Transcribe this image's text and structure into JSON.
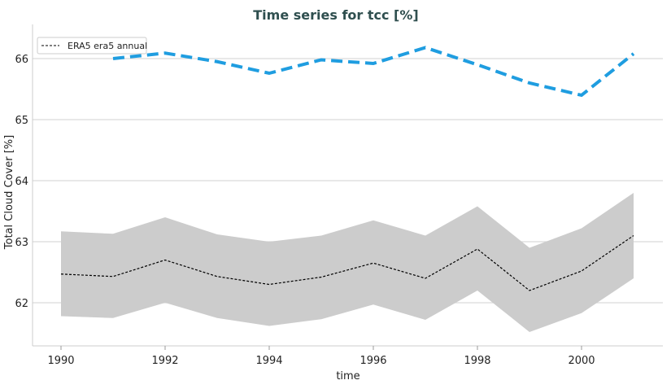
{
  "chart_data": {
    "type": "line",
    "title": "Time series for tcc [%]",
    "xlabel": "time",
    "ylabel": "Total Cloud Cover [%]",
    "xlim": [
      1989.5,
      2002.6
    ],
    "ylim": [
      61.3,
      66.6
    ],
    "xticks": [
      1990,
      1992,
      1994,
      1996,
      1998,
      2000
    ],
    "yticks": [
      62,
      63,
      64,
      65,
      66
    ],
    "grid": "horizontal",
    "legend_placement": "top-left",
    "series": [
      {
        "name": "ERA5 era5 annual",
        "style": "dashed",
        "color": "#000000",
        "x": [
          1990,
          1991,
          1992,
          1993,
          1994,
          1995,
          1996,
          1997,
          1998,
          1999,
          2000,
          2001
        ],
        "values": [
          62.47,
          62.43,
          62.7,
          62.43,
          62.3,
          62.42,
          62.65,
          62.4,
          62.88,
          62.2,
          62.52,
          63.1
        ],
        "band_upper": [
          63.17,
          63.13,
          63.4,
          63.12,
          63.0,
          63.1,
          63.35,
          63.1,
          63.58,
          62.9,
          63.22,
          63.8
        ],
        "band_lower": [
          61.78,
          61.75,
          62.0,
          61.75,
          61.62,
          61.73,
          61.97,
          61.72,
          62.2,
          61.52,
          61.83,
          62.4
        ],
        "band_color": "#cccccc"
      },
      {
        "style": "dashed",
        "color": "#1f9de0",
        "x": [
          1991,
          1992,
          1993,
          1994,
          1995,
          1996,
          1997,
          1998,
          1999,
          2000,
          2001
        ],
        "values": [
          66.0,
          66.09,
          65.95,
          65.76,
          65.98,
          65.92,
          66.18,
          65.9,
          65.6,
          65.4,
          66.08
        ]
      }
    ]
  }
}
